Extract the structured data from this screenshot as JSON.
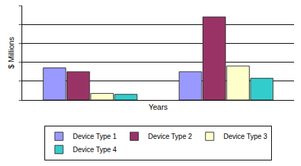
{
  "chart_data": {
    "type": "bar",
    "x_label": "Years",
    "y_label": "$ Millions",
    "categories": [
      null,
      null
    ],
    "series": [
      {
        "name": "Device Type 1",
        "color": "#9999FF",
        "values": [
          1.7,
          1.5
        ]
      },
      {
        "name": "Device Type 2",
        "color": "#993366",
        "values": [
          1.5,
          4.4
        ]
      },
      {
        "name": "Device Type 3",
        "color": "#FFFFCC",
        "values": [
          0.35,
          1.8
        ]
      },
      {
        "name": "Device Type 4",
        "color": "#33CCCC",
        "values": [
          0.3,
          1.15
        ]
      }
    ],
    "ylim": [
      0,
      5
    ],
    "yticks": [
      0,
      1,
      2,
      3,
      4,
      5
    ],
    "grid": true,
    "legend": "bottom",
    "tick_labels": false
  }
}
